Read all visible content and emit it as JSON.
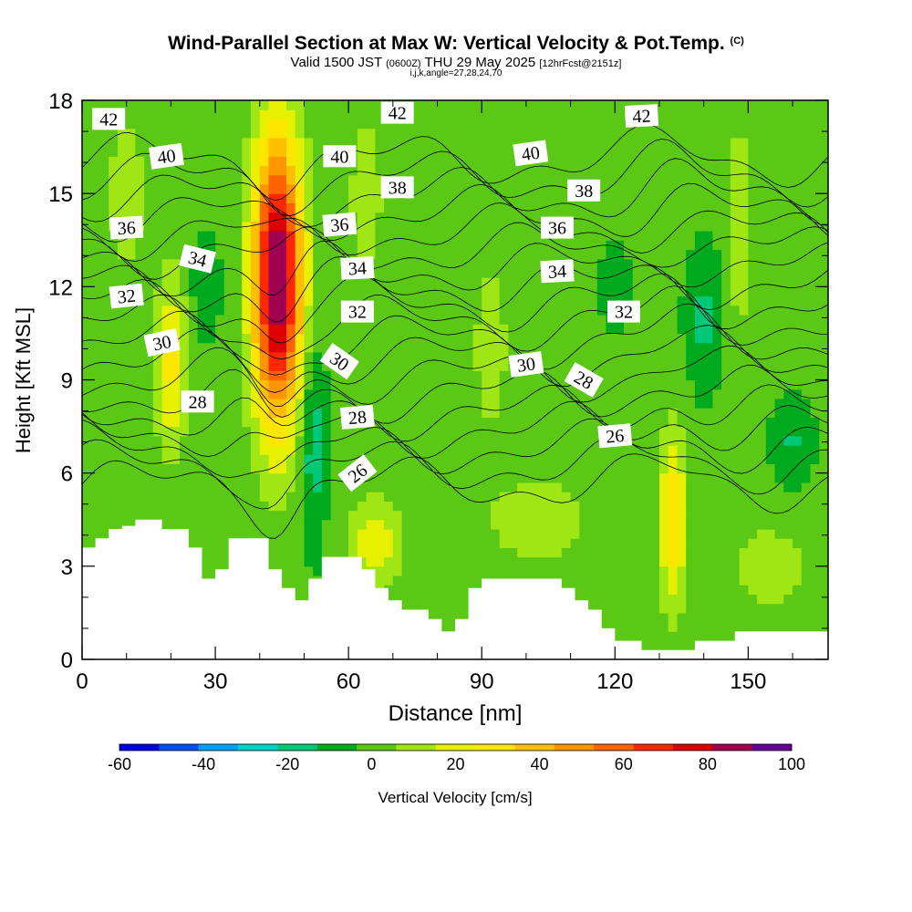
{
  "title": {
    "main": "Wind-Parallel Section at Max W: Vertical Velocity & Pot.Temp.",
    "copyright": "(C)",
    "valid_prefix": "Valid 1500 JST",
    "valid_utc": "(0600Z)",
    "valid_date": "THU 29 May 2025",
    "forecast": "[12hrFcst@2151z]",
    "indices": "i,j,k,angle=27,28,24,70"
  },
  "chart_data": {
    "type": "heatmap",
    "title": "Wind-Parallel Section at Max W: Vertical Velocity & Pot.Temp.",
    "xlabel": "Distance [nm]",
    "ylabel": "Height [Kft MSL]",
    "xlim": [
      0,
      168
    ],
    "ylim": [
      0,
      18
    ],
    "x_ticks": [
      0,
      30,
      60,
      90,
      120,
      150
    ],
    "y_ticks": [
      0,
      3,
      6,
      9,
      12,
      15,
      18
    ],
    "colorbar": {
      "label": "Vertical Velocity [cm/s]",
      "range": [
        -60,
        100
      ],
      "step": 10,
      "tick_labels": [
        -60,
        -40,
        -20,
        0,
        20,
        40,
        60,
        80,
        100
      ],
      "colors": [
        "#0000e6",
        "#0050f0",
        "#00a0f5",
        "#00d2c8",
        "#00c878",
        "#00aa1e",
        "#5ac814",
        "#a0e614",
        "#e6f000",
        "#ffe600",
        "#ffbe00",
        "#ff9600",
        "#ff6400",
        "#ff2800",
        "#dc0000",
        "#a00050",
        "#640096"
      ]
    },
    "background_velocity": 3,
    "velocity_cells": [
      {
        "x": 44,
        "y": 12.2,
        "rx": 5.5,
        "ry": 4.6,
        "v": 100
      },
      {
        "x": 20,
        "y": 9.5,
        "rx": 3.5,
        "ry": 2.8,
        "v": 30
      },
      {
        "x": 133,
        "y": 4.5,
        "rx": 3.0,
        "ry": 2.8,
        "v": 36
      },
      {
        "x": 66,
        "y": 3.8,
        "rx": 6.0,
        "ry": 1.4,
        "v": 25
      },
      {
        "x": 52,
        "y": 7.0,
        "rx": 3.0,
        "ry": 3.2,
        "v": -20
      },
      {
        "x": 28,
        "y": 12.0,
        "rx": 3.0,
        "ry": 1.5,
        "v": -14
      },
      {
        "x": 140,
        "y": 11.0,
        "rx": 4.0,
        "ry": 2.2,
        "v": -16
      },
      {
        "x": 160,
        "y": 7.0,
        "rx": 4.5,
        "ry": 1.4,
        "v": -14
      },
      {
        "x": 103,
        "y": 4.5,
        "rx": 12.0,
        "ry": 1.5,
        "v": 14
      },
      {
        "x": 155,
        "y": 3.0,
        "rx": 10.0,
        "ry": 1.5,
        "v": 12
      },
      {
        "x": 64,
        "y": 15.0,
        "rx": 4.0,
        "ry": 3.0,
        "v": 13
      },
      {
        "x": 148,
        "y": 14.0,
        "rx": 3.0,
        "ry": 4.0,
        "v": 13
      },
      {
        "x": 10,
        "y": 15.0,
        "rx": 5.0,
        "ry": 3.0,
        "v": 12
      },
      {
        "x": 92,
        "y": 10.0,
        "rx": 4.0,
        "ry": 3.0,
        "v": 13
      },
      {
        "x": 120,
        "y": 12.0,
        "rx": 5.0,
        "ry": 2.0,
        "v": -5
      }
    ],
    "terrain": {
      "x": [
        0,
        3,
        6,
        9,
        12,
        15,
        18,
        21,
        24,
        27,
        30,
        33,
        36,
        39,
        42,
        45,
        48,
        51,
        54,
        57,
        60,
        63,
        66,
        69,
        72,
        75,
        78,
        81,
        84,
        87,
        90,
        93,
        96,
        99,
        102,
        105,
        108,
        111,
        114,
        117,
        120,
        123,
        126,
        129,
        132,
        135,
        138,
        141,
        144,
        147,
        150,
        153,
        156,
        159,
        162,
        165,
        168
      ],
      "height": [
        3.6,
        3.9,
        4.2,
        4.3,
        4.5,
        4.5,
        4.2,
        4.2,
        3.6,
        2.6,
        2.9,
        3.9,
        3.9,
        3.9,
        2.9,
        2.3,
        1.9,
        2.6,
        3.3,
        3.3,
        3.3,
        2.9,
        2.3,
        1.9,
        1.6,
        1.6,
        1.3,
        0.9,
        1.3,
        2.3,
        2.6,
        2.6,
        2.6,
        2.6,
        2.6,
        2.6,
        2.3,
        1.9,
        1.6,
        1.0,
        0.6,
        0.6,
        0.3,
        0.3,
        0.3,
        0.3,
        0.6,
        0.6,
        0.6,
        0.9,
        0.9,
        0.9,
        0.9,
        0.9,
        0.9,
        0.9,
        1.6
      ]
    },
    "theta_contours": {
      "levels": [
        25,
        26,
        27,
        28,
        29,
        30,
        31,
        32,
        33,
        34,
        35,
        36,
        37,
        38,
        39,
        40,
        41,
        42,
        43
      ],
      "labels": [
        {
          "text": "42",
          "x": 6,
          "y": 17.4,
          "angle": 0
        },
        {
          "text": "42",
          "x": 71,
          "y": 17.6,
          "angle": 0
        },
        {
          "text": "42",
          "x": 126,
          "y": 17.5,
          "angle": -3
        },
        {
          "text": "40",
          "x": 19,
          "y": 16.2,
          "angle": -8
        },
        {
          "text": "40",
          "x": 58,
          "y": 16.2,
          "angle": 0
        },
        {
          "text": "40",
          "x": 101,
          "y": 16.3,
          "angle": -8
        },
        {
          "text": "38",
          "x": 71,
          "y": 15.2,
          "angle": 0
        },
        {
          "text": "38",
          "x": 113,
          "y": 15.1,
          "angle": 0
        },
        {
          "text": "36",
          "x": 10,
          "y": 13.9,
          "angle": -3
        },
        {
          "text": "36",
          "x": 58,
          "y": 14.0,
          "angle": -5
        },
        {
          "text": "36",
          "x": 107,
          "y": 13.9,
          "angle": 0
        },
        {
          "text": "34",
          "x": 26,
          "y": 12.9,
          "angle": 14
        },
        {
          "text": "34",
          "x": 62,
          "y": 12.6,
          "angle": -3
        },
        {
          "text": "34",
          "x": 107,
          "y": 12.5,
          "angle": -3
        },
        {
          "text": "32",
          "x": 10,
          "y": 11.7,
          "angle": -6
        },
        {
          "text": "32",
          "x": 62,
          "y": 11.2,
          "angle": 0
        },
        {
          "text": "32",
          "x": 122,
          "y": 11.2,
          "angle": 0
        },
        {
          "text": "30",
          "x": 18,
          "y": 10.2,
          "angle": -12
        },
        {
          "text": "30",
          "x": 58,
          "y": 9.6,
          "angle": 35
        },
        {
          "text": "30",
          "x": 100,
          "y": 9.5,
          "angle": -8
        },
        {
          "text": "28",
          "x": 26,
          "y": 8.3,
          "angle": 0
        },
        {
          "text": "28",
          "x": 62,
          "y": 7.8,
          "angle": -5
        },
        {
          "text": "28",
          "x": 113,
          "y": 9.0,
          "angle": 30
        },
        {
          "text": "26",
          "x": 62,
          "y": 6.0,
          "angle": -38
        },
        {
          "text": "26",
          "x": 120,
          "y": 7.2,
          "angle": -5
        }
      ]
    }
  }
}
